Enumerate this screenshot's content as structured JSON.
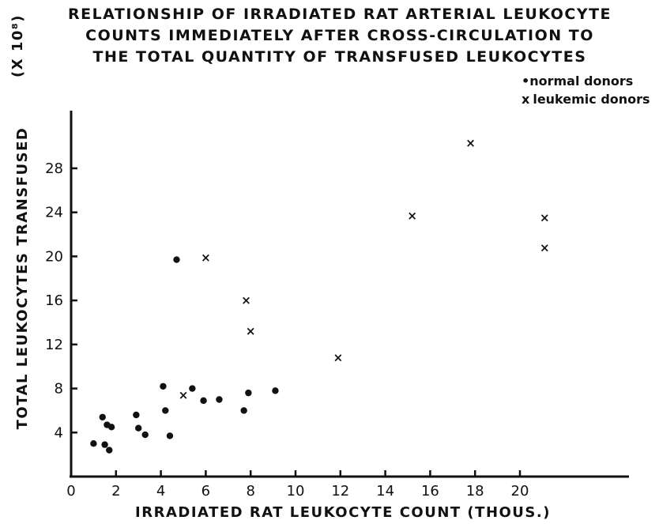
{
  "chart_data": {
    "type": "scatter",
    "title_lines": [
      "RELATIONSHIP OF IRRADIATED RAT ARTERIAL LEUKOCYTE",
      "COUNTS IMMEDIATELY AFTER CROSS-CIRCULATION TO",
      "THE TOTAL QUANTITY OF TRANSFUSED LEUKOCYTES"
    ],
    "xlabel": "IRRADIATED RAT LEUKOCYTE COUNT (THOUS.)",
    "ylabel": "TOTAL LEUKOCYTES TRANSFUSED",
    "ylabel_unit": "(X 10⁸)",
    "xlim": [
      0,
      25
    ],
    "ylim": [
      0,
      32
    ],
    "x_ticks": [
      0,
      2,
      4,
      6,
      8,
      10,
      12,
      14,
      16,
      18,
      20
    ],
    "x_tick_labels": [
      "0",
      "2",
      "4",
      "6",
      "8",
      "10",
      "12",
      "14",
      "16",
      "18",
      "20"
    ],
    "y_ticks": [
      4,
      8,
      12,
      16,
      20,
      24,
      28
    ],
    "y_tick_labels": [
      "4",
      "8",
      "12",
      "16",
      "20",
      "24",
      "28"
    ],
    "grid": false,
    "legend_position": "top-right",
    "series": [
      {
        "name": "normal donors",
        "marker": "dot",
        "x": [
          1.0,
          1.4,
          1.5,
          1.6,
          1.7,
          1.8,
          2.9,
          3.0,
          3.3,
          4.1,
          4.2,
          4.4,
          4.7,
          5.4,
          5.9,
          6.6,
          7.7,
          7.9,
          9.1
        ],
        "y": [
          3.0,
          5.4,
          2.9,
          4.7,
          2.4,
          4.5,
          5.6,
          4.4,
          3.8,
          8.2,
          6.0,
          3.7,
          19.7,
          8.0,
          6.9,
          7.0,
          6.0,
          7.6,
          7.8
        ]
      },
      {
        "name": "leukemic donors",
        "marker": "x",
        "x": [
          5.0,
          6.0,
          7.8,
          8.0,
          11.9,
          15.2,
          17.8,
          21.1,
          21.1
        ],
        "y": [
          7.4,
          19.9,
          16.0,
          13.2,
          10.8,
          23.7,
          30.3,
          23.5,
          20.8
        ]
      }
    ]
  },
  "legend": {
    "normal_label": "normal donors",
    "leukemic_label": "leukemic donors",
    "normal_symbol": "•",
    "leukemic_symbol": "x"
  }
}
